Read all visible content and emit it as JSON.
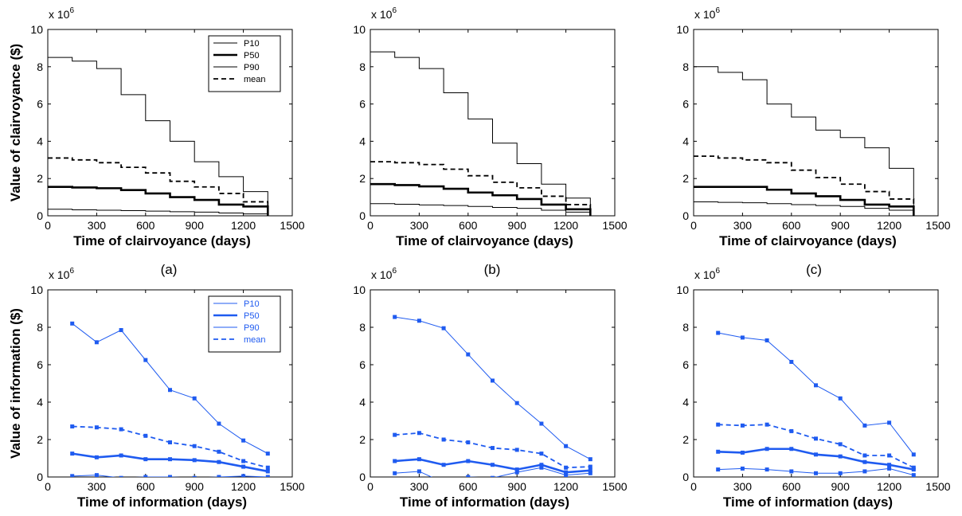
{
  "figure": {
    "sublabels": [
      "(a)",
      "(b)",
      "(c)"
    ]
  },
  "colors": {
    "black": "#000000",
    "blue": "#1f5bf0"
  },
  "chart_data": [
    {
      "type": "line",
      "step": true,
      "color": "#000000",
      "title": "",
      "xlabel": "Time of clairvoyance (days)",
      "ylabel": "Value of clairvoyance ($)",
      "multiplier": "x 10",
      "multiplier_exp": "6",
      "xlim": [
        0,
        1500
      ],
      "ylim": [
        0,
        10
      ],
      "xticks": [
        "0",
        "300",
        "600",
        "900",
        "1200",
        "1500"
      ],
      "yticks": [
        "0",
        "2",
        "4",
        "6",
        "8",
        "10"
      ],
      "legend": {
        "position": "top-right",
        "entries": [
          "P10",
          "P50",
          "P90",
          "mean"
        ]
      },
      "x": [
        0,
        150,
        300,
        450,
        600,
        750,
        900,
        1050,
        1200,
        1350
      ],
      "series": [
        {
          "name": "P10",
          "values": [
            8.5,
            8.3,
            7.9,
            6.5,
            5.1,
            4.0,
            2.9,
            2.1,
            1.3,
            0
          ],
          "style": "thin"
        },
        {
          "name": "P50",
          "values": [
            1.55,
            1.52,
            1.48,
            1.38,
            1.2,
            1.0,
            0.85,
            0.6,
            0.5,
            0
          ],
          "style": "thick"
        },
        {
          "name": "P90",
          "values": [
            0.35,
            0.32,
            0.3,
            0.28,
            0.25,
            0.22,
            0.2,
            0.15,
            0.1,
            0
          ],
          "style": "thin"
        },
        {
          "name": "mean",
          "values": [
            3.1,
            3.0,
            2.85,
            2.6,
            2.3,
            1.85,
            1.55,
            1.2,
            0.75,
            0
          ],
          "style": "dashed"
        }
      ]
    },
    {
      "type": "line",
      "step": true,
      "color": "#000000",
      "title": "",
      "xlabel": "Time of clairvoyance (days)",
      "ylabel": "",
      "multiplier": "x 10",
      "multiplier_exp": "6",
      "xlim": [
        0,
        1500
      ],
      "ylim": [
        0,
        10
      ],
      "xticks": [
        "0",
        "300",
        "600",
        "900",
        "1200",
        "1500"
      ],
      "yticks": [
        "0",
        "2",
        "4",
        "6",
        "8",
        "10"
      ],
      "x": [
        0,
        150,
        300,
        450,
        600,
        750,
        900,
        1050,
        1200,
        1350
      ],
      "series": [
        {
          "values": [
            8.8,
            8.5,
            7.9,
            6.6,
            5.2,
            3.9,
            2.8,
            1.7,
            0.95,
            0
          ],
          "style": "thin"
        },
        {
          "values": [
            1.7,
            1.65,
            1.58,
            1.45,
            1.25,
            1.1,
            0.9,
            0.6,
            0.35,
            0
          ],
          "style": "thick"
        },
        {
          "values": [
            0.65,
            0.62,
            0.58,
            0.55,
            0.5,
            0.45,
            0.4,
            0.3,
            0.2,
            0
          ],
          "style": "thin"
        },
        {
          "values": [
            2.9,
            2.85,
            2.75,
            2.5,
            2.15,
            1.8,
            1.5,
            1.05,
            0.6,
            0
          ],
          "style": "dashed"
        }
      ]
    },
    {
      "type": "line",
      "step": true,
      "color": "#000000",
      "title": "",
      "xlabel": "Time of clairvoyance (days)",
      "ylabel": "",
      "multiplier": "x 10",
      "multiplier_exp": "6",
      "xlim": [
        0,
        1500
      ],
      "ylim": [
        0,
        10
      ],
      "xticks": [
        "0",
        "300",
        "600",
        "900",
        "1200",
        "1500"
      ],
      "yticks": [
        "0",
        "2",
        "4",
        "6",
        "8",
        "10"
      ],
      "x": [
        0,
        150,
        300,
        450,
        600,
        750,
        900,
        1050,
        1200,
        1350
      ],
      "series": [
        {
          "values": [
            8.0,
            7.7,
            7.3,
            6.0,
            5.3,
            4.6,
            4.2,
            3.65,
            2.55,
            0
          ],
          "style": "thin"
        },
        {
          "values": [
            1.55,
            1.55,
            1.55,
            1.4,
            1.2,
            1.05,
            0.85,
            0.6,
            0.5,
            0
          ],
          "style": "thick"
        },
        {
          "values": [
            0.75,
            0.72,
            0.7,
            0.65,
            0.6,
            0.55,
            0.5,
            0.4,
            0.3,
            0
          ],
          "style": "thin"
        },
        {
          "values": [
            3.2,
            3.1,
            3.0,
            2.85,
            2.45,
            2.05,
            1.7,
            1.3,
            0.9,
            0
          ],
          "style": "dashed"
        }
      ]
    },
    {
      "type": "line",
      "step": false,
      "markers": true,
      "color": "#1f5bf0",
      "title": "",
      "xlabel": "Time of information (days)",
      "ylabel": "Value of information ($)",
      "multiplier": "x 10",
      "multiplier_exp": "6",
      "xlim": [
        0,
        1500
      ],
      "ylim": [
        0,
        10
      ],
      "xticks": [
        "0",
        "300",
        "600",
        "900",
        "1200",
        "1500"
      ],
      "yticks": [
        "0",
        "2",
        "4",
        "6",
        "8",
        "10"
      ],
      "legend": {
        "position": "top-right",
        "entries": [
          "P10",
          "P50",
          "P90",
          "mean"
        ]
      },
      "x": [
        150,
        300,
        450,
        600,
        750,
        900,
        1050,
        1200,
        1350
      ],
      "series": [
        {
          "name": "P10",
          "values": [
            8.2,
            7.2,
            7.85,
            6.25,
            4.65,
            4.2,
            2.85,
            1.95,
            1.25
          ],
          "style": "thin"
        },
        {
          "name": "P50",
          "values": [
            1.25,
            1.05,
            1.15,
            0.95,
            0.95,
            0.9,
            0.8,
            0.55,
            0.3
          ],
          "style": "thick"
        },
        {
          "name": "P90",
          "values": [
            0.05,
            0.1,
            -0.05,
            0.0,
            0.0,
            -0.05,
            0.0,
            0.05,
            0.0
          ],
          "style": "thin"
        },
        {
          "name": "mean",
          "values": [
            2.7,
            2.65,
            2.55,
            2.2,
            1.85,
            1.65,
            1.35,
            0.85,
            0.5
          ],
          "style": "dashed"
        }
      ]
    },
    {
      "type": "line",
      "step": false,
      "markers": true,
      "color": "#1f5bf0",
      "title": "",
      "xlabel": "Time of information (days)",
      "ylabel": "",
      "multiplier": "x 10",
      "multiplier_exp": "6",
      "xlim": [
        0,
        1500
      ],
      "ylim": [
        0,
        10
      ],
      "xticks": [
        "0",
        "300",
        "600",
        "900",
        "1200",
        "1500"
      ],
      "yticks": [
        "0",
        "2",
        "4",
        "6",
        "8",
        "10"
      ],
      "x": [
        150,
        300,
        450,
        600,
        750,
        900,
        1050,
        1200,
        1350
      ],
      "series": [
        {
          "values": [
            8.55,
            8.35,
            7.95,
            6.55,
            5.15,
            3.95,
            2.85,
            1.65,
            0.95
          ],
          "style": "thin"
        },
        {
          "values": [
            0.85,
            0.95,
            0.65,
            0.85,
            0.65,
            0.4,
            0.65,
            0.25,
            0.35
          ],
          "style": "thick"
        },
        {
          "values": [
            0.2,
            0.3,
            -0.3,
            0.0,
            -0.05,
            0.25,
            0.5,
            0.1,
            0.2
          ],
          "style": "thin"
        },
        {
          "values": [
            2.25,
            2.35,
            2.0,
            1.85,
            1.55,
            1.45,
            1.25,
            0.5,
            0.55
          ],
          "style": "dashed"
        }
      ]
    },
    {
      "type": "line",
      "step": false,
      "markers": true,
      "color": "#1f5bf0",
      "title": "",
      "xlabel": "Time of information (days)",
      "ylabel": "",
      "multiplier": "x 10",
      "multiplier_exp": "6",
      "xlim": [
        0,
        1500
      ],
      "ylim": [
        0,
        10
      ],
      "xticks": [
        "0",
        "300",
        "600",
        "900",
        "1200",
        "1500"
      ],
      "yticks": [
        "0",
        "2",
        "4",
        "6",
        "8",
        "10"
      ],
      "x": [
        150,
        300,
        450,
        600,
        750,
        900,
        1050,
        1200,
        1350
      ],
      "series": [
        {
          "values": [
            7.7,
            7.45,
            7.3,
            6.15,
            4.9,
            4.2,
            2.75,
            2.9,
            1.2
          ],
          "style": "thin"
        },
        {
          "values": [
            1.35,
            1.3,
            1.5,
            1.5,
            1.2,
            1.1,
            0.8,
            0.65,
            0.4
          ],
          "style": "thick"
        },
        {
          "values": [
            0.4,
            0.45,
            0.4,
            0.3,
            0.2,
            0.2,
            0.3,
            0.45,
            0.1
          ],
          "style": "thin"
        },
        {
          "values": [
            2.8,
            2.75,
            2.8,
            2.45,
            2.05,
            1.75,
            1.15,
            1.15,
            0.5
          ],
          "style": "dashed"
        }
      ]
    }
  ]
}
